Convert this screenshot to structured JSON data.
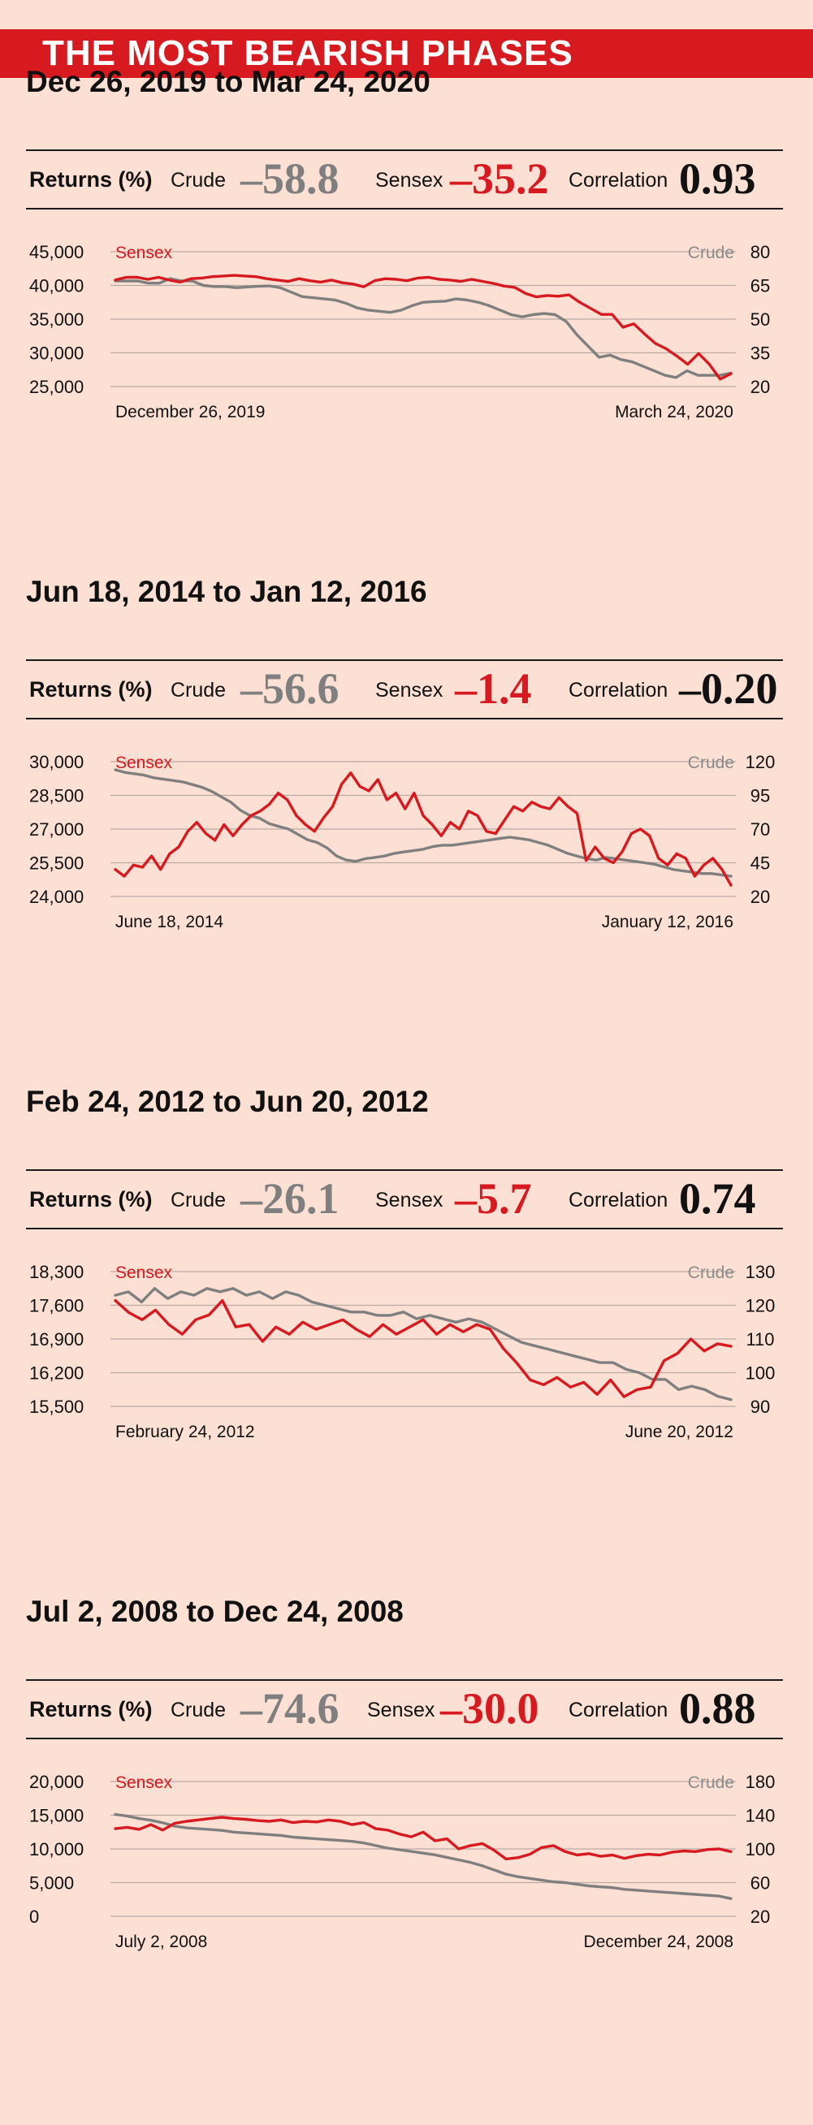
{
  "banner": {
    "title": "THE MOST BEARISH PHASES"
  },
  "labels": {
    "returns": "Returns (%)",
    "crude": "Crude",
    "sensex": "Sensex",
    "correlation": "Correlation"
  },
  "colors": {
    "sensex": "#d71920",
    "crude": "#7f7f7f",
    "banner": "#d71920",
    "background": "#fde0d4"
  },
  "panels": [
    {
      "title": "Dec 26, 2019 to Mar 24, 2020",
      "returns": {
        "crude": "–58.8",
        "sensex": "–35.2",
        "correlation": "0.93"
      }
    },
    {
      "title": "Jun 18, 2014 to Jan 12, 2016",
      "returns": {
        "crude": "–56.6",
        "sensex": "–1.4",
        "correlation": "–0.20"
      }
    },
    {
      "title": "Feb 24, 2012 to Jun 20, 2012",
      "returns": {
        "crude": "–26.1",
        "sensex": "–5.7",
        "correlation": "0.74"
      }
    },
    {
      "title": "Jul 2, 2008 to Dec 24, 2008",
      "returns": {
        "crude": "–74.6",
        "sensex": "–30.0",
        "correlation": "0.88"
      }
    }
  ],
  "chart_data": [
    {
      "type": "line",
      "x_start_label": "December 26, 2019",
      "x_end_label": "March 24, 2020",
      "ylabel_left": "Sensex",
      "ylabel_right": "Crude",
      "left_ticks": [
        "45,000",
        "40,000",
        "35,000",
        "30,000",
        "25,000"
      ],
      "left_ylim": [
        25000,
        45000
      ],
      "right_ticks": [
        "80",
        "65",
        "50",
        "35",
        "20"
      ],
      "right_ylim": [
        20,
        80
      ],
      "grid": true,
      "series": [
        {
          "name": "Sensex",
          "axis": "left",
          "values": [
            40800,
            41200,
            41200,
            40900,
            41200,
            40800,
            40500,
            41000,
            41100,
            41300,
            41400,
            41500,
            41400,
            41300,
            41000,
            40800,
            40600,
            41000,
            40700,
            40500,
            40800,
            40400,
            40200,
            39800,
            40700,
            41000,
            40900,
            40700,
            41100,
            41200,
            40900,
            40800,
            40600,
            40900,
            40600,
            40300,
            39900,
            39700,
            38800,
            38300,
            38500,
            38400,
            38600,
            37500,
            36600,
            35700,
            35700,
            33800,
            34300,
            32800,
            31400,
            30600,
            29500,
            28300,
            29900,
            28300,
            26100,
            26900
          ]
        },
        {
          "name": "Crude",
          "axis": "right",
          "values": [
            67,
            67,
            67,
            66,
            66,
            68,
            67,
            67,
            65,
            64.5,
            64.5,
            64,
            64.3,
            64.6,
            64.8,
            64,
            62,
            60,
            59.5,
            59,
            58.5,
            57,
            55,
            54,
            53.5,
            53,
            54,
            56,
            57.5,
            57.8,
            58,
            59,
            58.5,
            57.5,
            56,
            54,
            52,
            51,
            52,
            52.5,
            52,
            49,
            43,
            38,
            33,
            34,
            32,
            31,
            29,
            27,
            25,
            24,
            27,
            25,
            25,
            25,
            26
          ]
        }
      ]
    },
    {
      "type": "line",
      "x_start_label": "June 18, 2014",
      "x_end_label": "January 12, 2016",
      "ylabel_left": "Sensex",
      "ylabel_right": "Crude",
      "left_ticks": [
        "30,000",
        "28,500",
        "27,000",
        "25,500",
        "24,000"
      ],
      "left_ylim": [
        24000,
        30000
      ],
      "right_ticks": [
        "120",
        "95",
        "70",
        "45",
        "20"
      ],
      "right_ylim": [
        20,
        120
      ],
      "grid": true,
      "series": [
        {
          "name": "Sensex",
          "axis": "left",
          "values": [
            25200,
            24900,
            25400,
            25300,
            25800,
            25200,
            25900,
            26200,
            26900,
            27300,
            26800,
            26500,
            27200,
            26700,
            27200,
            27600,
            27800,
            28100,
            28600,
            28300,
            27600,
            27200,
            26900,
            27500,
            28000,
            29000,
            29500,
            28900,
            28700,
            29200,
            28300,
            28600,
            27900,
            28600,
            27600,
            27200,
            26700,
            27300,
            27000,
            27800,
            27600,
            26900,
            26800,
            27400,
            28000,
            27800,
            28200,
            28000,
            27900,
            28400,
            28000,
            27700,
            25600,
            26200,
            25700,
            25500,
            26000,
            26800,
            27000,
            26700,
            25700,
            25400,
            25900,
            25700,
            24900,
            25400,
            25700,
            25200,
            24500
          ]
        },
        {
          "name": "Crude",
          "axis": "right",
          "values": [
            114,
            112,
            111,
            110,
            108,
            107,
            106,
            105,
            103,
            101,
            98,
            94,
            90,
            84,
            80,
            78,
            74,
            72,
            70,
            66,
            62,
            60,
            56,
            50,
            47,
            46,
            48,
            49,
            50,
            52,
            53,
            54,
            55,
            57,
            58,
            58,
            59,
            60,
            61,
            62,
            63,
            64,
            63,
            62,
            60,
            58,
            55,
            52,
            50,
            48,
            47,
            49,
            48,
            47,
            46,
            45,
            44,
            42,
            40,
            39,
            38,
            37,
            37,
            36,
            35
          ]
        }
      ]
    },
    {
      "type": "line",
      "x_start_label": "February 24, 2012",
      "x_end_label": "June 20, 2012",
      "ylabel_left": "Sensex",
      "ylabel_right": "Crude",
      "left_ticks": [
        "18,300",
        "17,600",
        "16,900",
        "16,200",
        "15,500"
      ],
      "left_ylim": [
        15500,
        18300
      ],
      "right_ticks": [
        "130",
        "120",
        "110",
        "100",
        "90"
      ],
      "right_ylim": [
        90,
        130
      ],
      "grid": true,
      "series": [
        {
          "name": "Sensex",
          "axis": "left",
          "values": [
            17700,
            17450,
            17300,
            17500,
            17200,
            17000,
            17300,
            17400,
            17700,
            17150,
            17200,
            16850,
            17150,
            17000,
            17250,
            17100,
            17200,
            17300,
            17100,
            16950,
            17200,
            17000,
            17150,
            17300,
            17000,
            17200,
            17050,
            17200,
            17100,
            16700,
            16400,
            16050,
            15950,
            16100,
            15900,
            16000,
            15750,
            16050,
            15700,
            15850,
            15900,
            16450,
            16600,
            16900,
            16650,
            16800,
            16750
          ]
        },
        {
          "name": "Crude",
          "axis": "right",
          "values": [
            123,
            124,
            121,
            125,
            122,
            124,
            123,
            125,
            124,
            125,
            123,
            124,
            122,
            124,
            123,
            121,
            120,
            119,
            118,
            118,
            117,
            117,
            118,
            116,
            117,
            116,
            115,
            116,
            115,
            113,
            111,
            109,
            108,
            107,
            106,
            105,
            104,
            103,
            103,
            101,
            100,
            98,
            98,
            95,
            96,
            95,
            93,
            92
          ]
        }
      ]
    },
    {
      "type": "line",
      "x_start_label": "July 2, 2008",
      "x_end_label": "December 24, 2008",
      "ylabel_left": "Sensex",
      "ylabel_right": "Crude",
      "left_ticks": [
        "20,000",
        "15,000",
        "10,000",
        "5,000",
        "0"
      ],
      "left_ylim": [
        0,
        20000
      ],
      "right_ticks": [
        "180",
        "140",
        "100",
        "60",
        "20"
      ],
      "right_ylim": [
        20,
        180
      ],
      "grid": true,
      "series": [
        {
          "name": "Sensex",
          "axis": "left",
          "values": [
            13000,
            13200,
            12900,
            13600,
            12800,
            13800,
            14100,
            14300,
            14500,
            14700,
            14500,
            14400,
            14200,
            14100,
            14300,
            13900,
            14100,
            14000,
            14300,
            14100,
            13600,
            13900,
            13000,
            12800,
            12200,
            11800,
            12500,
            11200,
            11500,
            10000,
            10500,
            10800,
            9800,
            8500,
            8700,
            9200,
            10200,
            10500,
            9600,
            9100,
            9300,
            8900,
            9100,
            8600,
            9000,
            9200,
            9100,
            9500,
            9700,
            9600,
            9900,
            10000,
            9600
          ]
        },
        {
          "name": "Crude",
          "axis": "right",
          "values": [
            141,
            139,
            136,
            134,
            131,
            127,
            125,
            124,
            123,
            122,
            120,
            119,
            118,
            117,
            116,
            114,
            113,
            112,
            111,
            110,
            109,
            107,
            104,
            101,
            99,
            97,
            95,
            93,
            90,
            87,
            84,
            80,
            75,
            70,
            67,
            65,
            63,
            61,
            60,
            58,
            56,
            55,
            54,
            52,
            51,
            50,
            49,
            48,
            47,
            46,
            45,
            44,
            41
          ]
        }
      ]
    }
  ]
}
